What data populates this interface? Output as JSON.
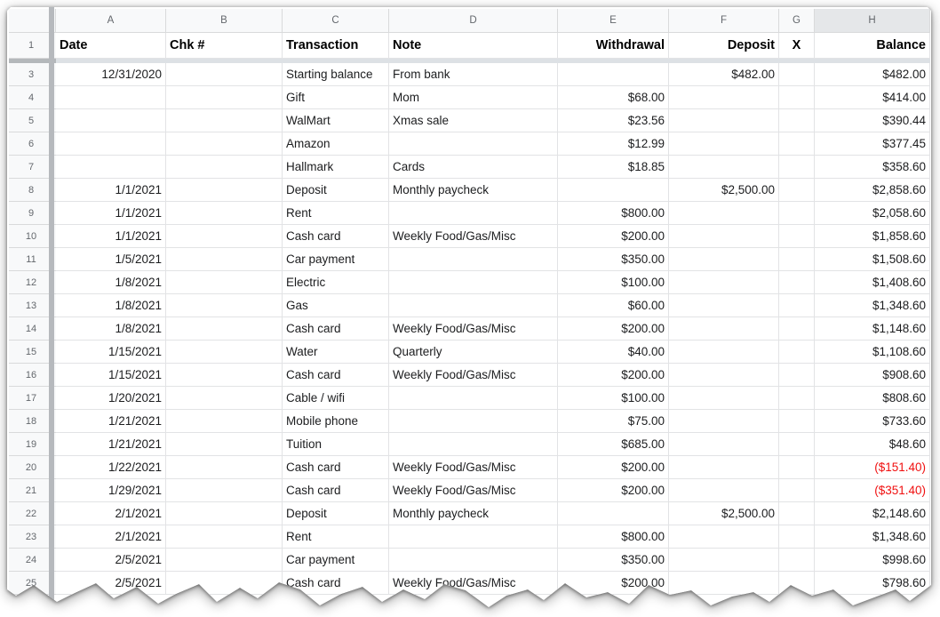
{
  "sheet": {
    "column_headers": [
      "A",
      "B",
      "C",
      "D",
      "E",
      "F",
      "G",
      "H"
    ],
    "selected_column_header": "H",
    "corner_label": "",
    "hidden_row_note": "row 2 hidden",
    "header_row": {
      "num": "1",
      "date": "Date",
      "chk": "Chk #",
      "transaction": "Transaction",
      "note": "Note",
      "withdrawal": "Withdrawal",
      "deposit": "Deposit",
      "x": "X",
      "balance": "Balance"
    },
    "rows": [
      {
        "num": "3",
        "date": "12/31/2020",
        "chk": "",
        "transaction": "Starting balance",
        "note": "From bank",
        "withdrawal": "",
        "deposit": "$482.00",
        "x": "",
        "balance": "$482.00",
        "neg": false
      },
      {
        "num": "4",
        "date": "",
        "chk": "",
        "transaction": "Gift",
        "note": "Mom",
        "withdrawal": "$68.00",
        "deposit": "",
        "x": "",
        "balance": "$414.00",
        "neg": false
      },
      {
        "num": "5",
        "date": "",
        "chk": "",
        "transaction": "WalMart",
        "note": "Xmas sale",
        "withdrawal": "$23.56",
        "deposit": "",
        "x": "",
        "balance": "$390.44",
        "neg": false
      },
      {
        "num": "6",
        "date": "",
        "chk": "",
        "transaction": "Amazon",
        "note": "",
        "withdrawal": "$12.99",
        "deposit": "",
        "x": "",
        "balance": "$377.45",
        "neg": false
      },
      {
        "num": "7",
        "date": "",
        "chk": "",
        "transaction": "Hallmark",
        "note": "Cards",
        "withdrawal": "$18.85",
        "deposit": "",
        "x": "",
        "balance": "$358.60",
        "neg": false
      },
      {
        "num": "8",
        "date": "1/1/2021",
        "chk": "",
        "transaction": "Deposit",
        "note": "Monthly paycheck",
        "withdrawal": "",
        "deposit": "$2,500.00",
        "x": "",
        "balance": "$2,858.60",
        "neg": false
      },
      {
        "num": "9",
        "date": "1/1/2021",
        "chk": "",
        "transaction": "Rent",
        "note": "",
        "withdrawal": "$800.00",
        "deposit": "",
        "x": "",
        "balance": "$2,058.60",
        "neg": false
      },
      {
        "num": "10",
        "date": "1/1/2021",
        "chk": "",
        "transaction": "Cash card",
        "note": "Weekly Food/Gas/Misc",
        "withdrawal": "$200.00",
        "deposit": "",
        "x": "",
        "balance": "$1,858.60",
        "neg": false
      },
      {
        "num": "11",
        "date": "1/5/2021",
        "chk": "",
        "transaction": "Car payment",
        "note": "",
        "withdrawal": "$350.00",
        "deposit": "",
        "x": "",
        "balance": "$1,508.60",
        "neg": false
      },
      {
        "num": "12",
        "date": "1/8/2021",
        "chk": "",
        "transaction": "Electric",
        "note": "",
        "withdrawal": "$100.00",
        "deposit": "",
        "x": "",
        "balance": "$1,408.60",
        "neg": false
      },
      {
        "num": "13",
        "date": "1/8/2021",
        "chk": "",
        "transaction": "Gas",
        "note": "",
        "withdrawal": "$60.00",
        "deposit": "",
        "x": "",
        "balance": "$1,348.60",
        "neg": false
      },
      {
        "num": "14",
        "date": "1/8/2021",
        "chk": "",
        "transaction": "Cash card",
        "note": "Weekly Food/Gas/Misc",
        "withdrawal": "$200.00",
        "deposit": "",
        "x": "",
        "balance": "$1,148.60",
        "neg": false
      },
      {
        "num": "15",
        "date": "1/15/2021",
        "chk": "",
        "transaction": "Water",
        "note": "Quarterly",
        "withdrawal": "$40.00",
        "deposit": "",
        "x": "",
        "balance": "$1,108.60",
        "neg": false
      },
      {
        "num": "16",
        "date": "1/15/2021",
        "chk": "",
        "transaction": "Cash card",
        "note": "Weekly Food/Gas/Misc",
        "withdrawal": "$200.00",
        "deposit": "",
        "x": "",
        "balance": "$908.60",
        "neg": false
      },
      {
        "num": "17",
        "date": "1/20/2021",
        "chk": "",
        "transaction": "Cable / wifi",
        "note": "",
        "withdrawal": "$100.00",
        "deposit": "",
        "x": "",
        "balance": "$808.60",
        "neg": false
      },
      {
        "num": "18",
        "date": "1/21/2021",
        "chk": "",
        "transaction": "Mobile phone",
        "note": "",
        "withdrawal": "$75.00",
        "deposit": "",
        "x": "",
        "balance": "$733.60",
        "neg": false
      },
      {
        "num": "19",
        "date": "1/21/2021",
        "chk": "",
        "transaction": "Tuition",
        "note": "",
        "withdrawal": "$685.00",
        "deposit": "",
        "x": "",
        "balance": "$48.60",
        "neg": false
      },
      {
        "num": "20",
        "date": "1/22/2021",
        "chk": "",
        "transaction": "Cash card",
        "note": "Weekly Food/Gas/Misc",
        "withdrawal": "$200.00",
        "deposit": "",
        "x": "",
        "balance": "($151.40)",
        "neg": true
      },
      {
        "num": "21",
        "date": "1/29/2021",
        "chk": "",
        "transaction": "Cash card",
        "note": "Weekly Food/Gas/Misc",
        "withdrawal": "$200.00",
        "deposit": "",
        "x": "",
        "balance": "($351.40)",
        "neg": true
      },
      {
        "num": "22",
        "date": "2/1/2021",
        "chk": "",
        "transaction": "Deposit",
        "note": "Monthly paycheck",
        "withdrawal": "",
        "deposit": "$2,500.00",
        "x": "",
        "balance": "$2,148.60",
        "neg": false
      },
      {
        "num": "23",
        "date": "2/1/2021",
        "chk": "",
        "transaction": "Rent",
        "note": "",
        "withdrawal": "$800.00",
        "deposit": "",
        "x": "",
        "balance": "$1,348.60",
        "neg": false
      },
      {
        "num": "24",
        "date": "2/5/2021",
        "chk": "",
        "transaction": "Car payment",
        "note": "",
        "withdrawal": "$350.00",
        "deposit": "",
        "x": "",
        "balance": "$998.60",
        "neg": false
      },
      {
        "num": "25",
        "date": "2/5/2021",
        "chk": "",
        "transaction": "Cash card",
        "note": "Weekly Food/Gas/Misc",
        "withdrawal": "$200.00",
        "deposit": "",
        "x": "",
        "balance": "$798.60",
        "neg": false
      }
    ]
  },
  "colors": {
    "negative_value": "#f01010",
    "gridline": "#e2e3e5",
    "header_background": "#f8f9fa",
    "selected_header_background": "#e5e7e9",
    "frozen_bar": "#b6b9bd",
    "frozen_band": "#dde1e5"
  }
}
